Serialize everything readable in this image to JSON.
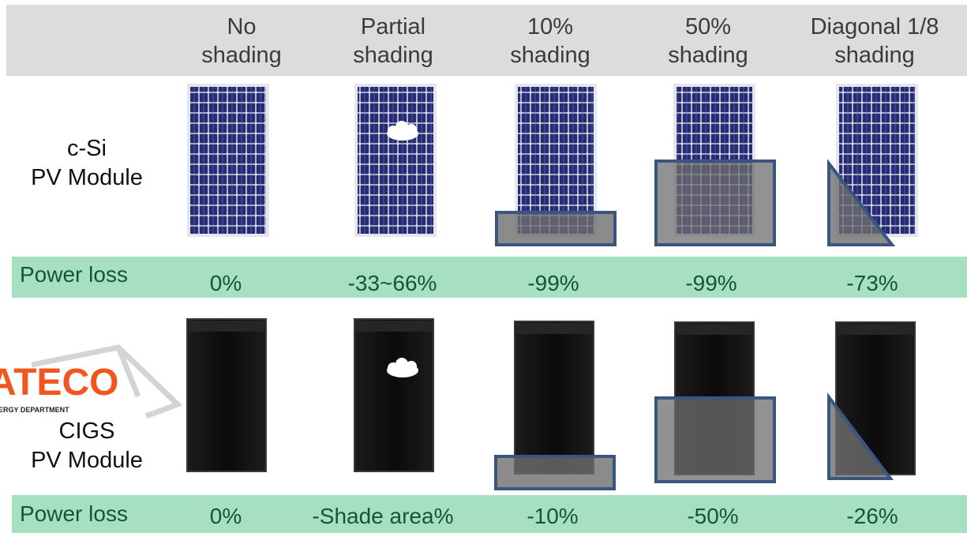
{
  "header": {
    "columns": [
      "No\nshading",
      "Partial\nshading",
      "10%\nshading",
      "50%\nshading",
      "Diagonal 1/8\nshading"
    ]
  },
  "rows": [
    {
      "module_label": "c-Si\nPV Module",
      "loss_label": "Power  loss",
      "losses": [
        "0%",
        "-33~66%",
        "-99%",
        "-99%",
        "-73%"
      ]
    },
    {
      "module_label": "CIGS\nPV Module",
      "loss_label": "Power loss",
      "losses": [
        "0%",
        "-Shade area%",
        "-10%",
        "-50%",
        "-26%"
      ]
    }
  ],
  "logo": {
    "text": "ATECO",
    "subtext": "ERGY DEPARTMENT"
  },
  "icons": {
    "shade": "cloud-shape",
    "shading": "gray-overlay"
  },
  "colors": {
    "header_bg": "#dcdcdc",
    "loss_band": "#a6e0c0",
    "loss_text": "#14553a",
    "csi_cell": "#272b73",
    "cigs_panel": "#101010",
    "shade_fill": "#7a7a7a",
    "shade_border": "#3a5580",
    "logo_orange": "#f0561e"
  }
}
